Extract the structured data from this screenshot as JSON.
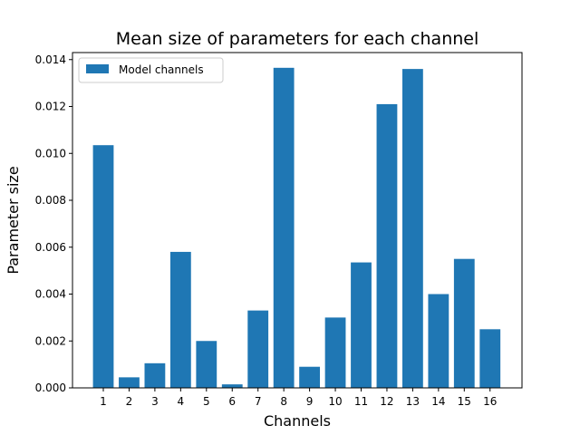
{
  "chart_data": {
    "type": "bar",
    "title": "Mean size of parameters for each channel",
    "xlabel": "Channels",
    "ylabel": "Parameter size",
    "categories": [
      "1",
      "2",
      "3",
      "4",
      "5",
      "6",
      "7",
      "8",
      "9",
      "10",
      "11",
      "12",
      "13",
      "14",
      "15",
      "16"
    ],
    "series": [
      {
        "name": "Model channels",
        "color": "#1f77b4",
        "values": [
          0.01035,
          0.00045,
          0.00105,
          0.0058,
          0.002,
          0.00015,
          0.0033,
          0.01365,
          0.0009,
          0.003,
          0.00535,
          0.0121,
          0.0136,
          0.004,
          0.0055,
          0.0025
        ]
      }
    ],
    "ylim": [
      0,
      0.0143
    ],
    "yticks": [
      "0.000",
      "0.002",
      "0.004",
      "0.006",
      "0.008",
      "0.010",
      "0.012",
      "0.014"
    ],
    "grid": false,
    "legend_position": "top-left"
  }
}
